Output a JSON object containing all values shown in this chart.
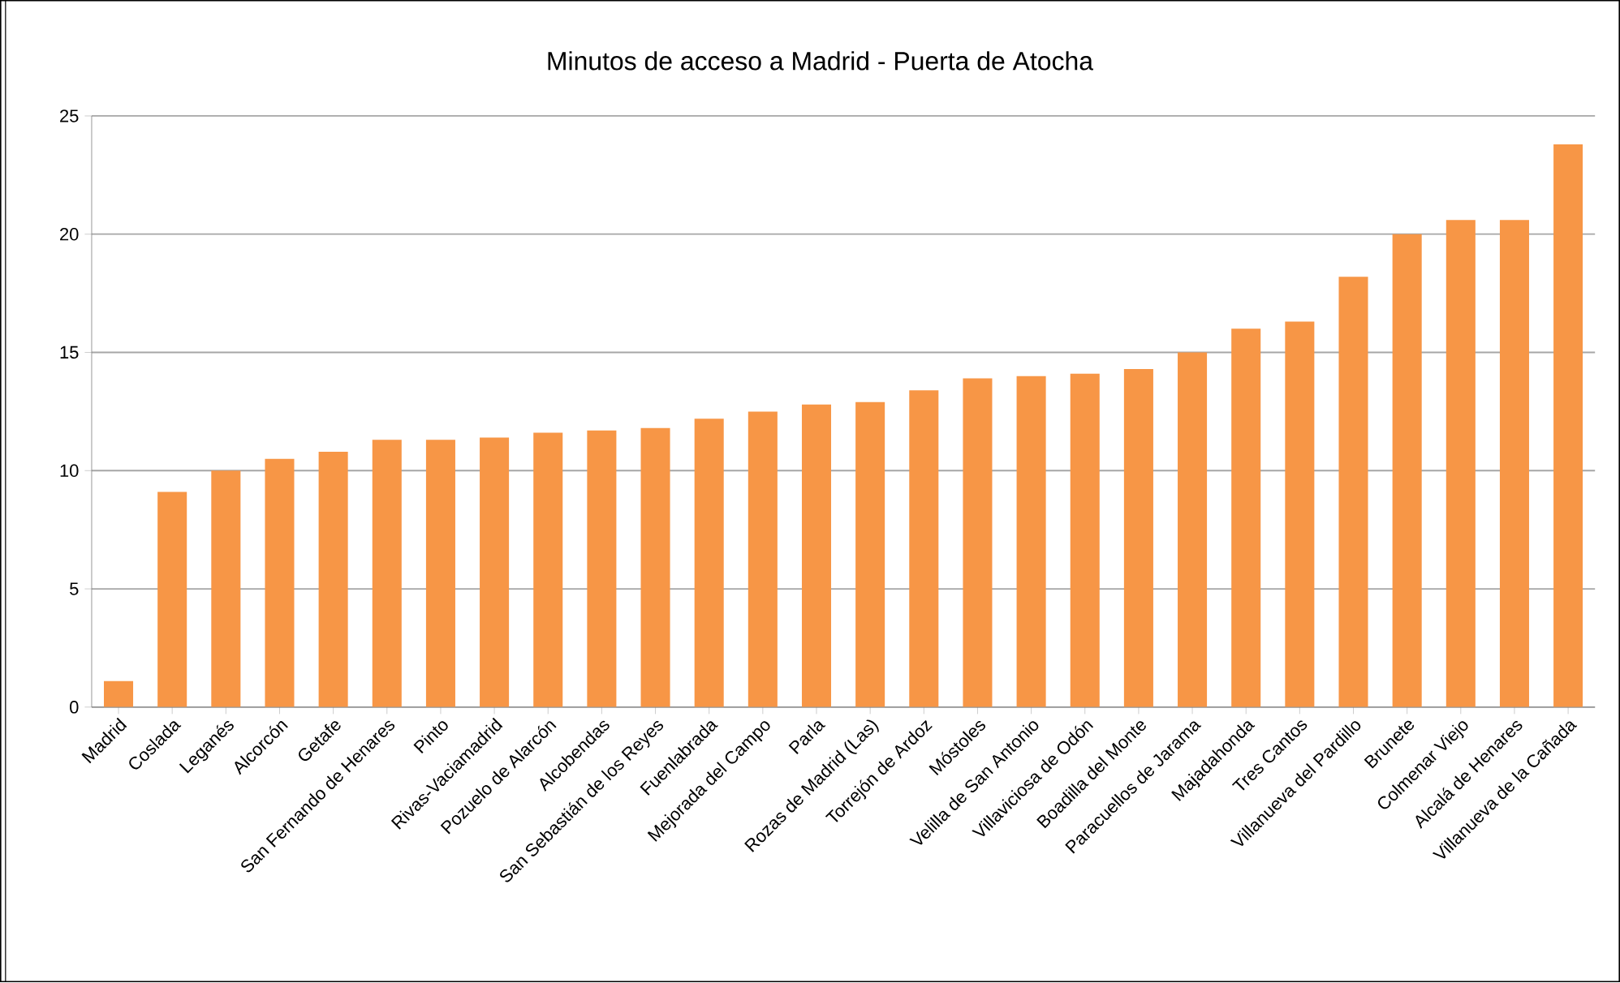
{
  "chart_data": {
    "type": "bar",
    "title": "Minutos de acceso a Madrid - Puerta de Atocha",
    "categories": [
      "Madrid",
      "Coslada",
      "Leganés",
      "Alcorcón",
      "Getafe",
      "San Fernando de Henares",
      "Pinto",
      "Rivas-Vaciamadrid",
      "Pozuelo de Alarcón",
      "Alcobendas",
      "San Sebastián de los Reyes",
      "Fuenlabrada",
      "Mejorada del Campo",
      "Parla",
      "Rozas de Madrid (Las)",
      "Torrejón de Ardoz",
      "Móstoles",
      "Velilla de San Antonio",
      "Villaviciosa de Odón",
      "Boadilla del Monte",
      "Paracuellos de Jarama",
      "Majadahonda",
      "Tres Cantos",
      "Villanueva del Pardillo",
      "Brunete",
      "Colmenar Viejo",
      "Alcalá de Henares",
      "Villanueva de la Cañada"
    ],
    "values": [
      1.1,
      9.1,
      10.0,
      10.5,
      10.8,
      11.3,
      11.3,
      11.4,
      11.6,
      11.7,
      11.8,
      12.2,
      12.5,
      12.8,
      12.9,
      13.4,
      13.9,
      14.0,
      14.1,
      14.3,
      15.0,
      16.0,
      16.3,
      18.2,
      20.0,
      20.6,
      20.6,
      23.8
    ],
    "color": "#f79646",
    "ylim": [
      0,
      25
    ],
    "yticks": [
      0,
      5,
      10,
      15,
      20,
      25
    ],
    "grid": "y"
  }
}
